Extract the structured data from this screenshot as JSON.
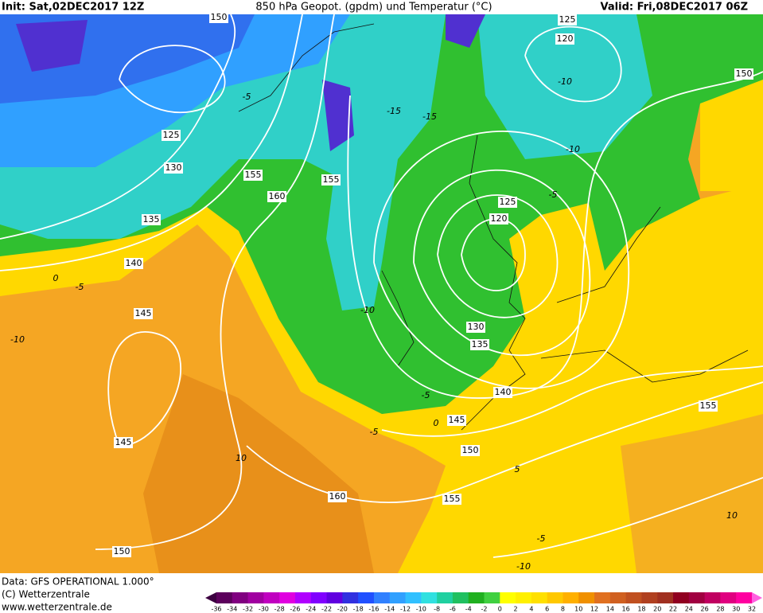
{
  "header": {
    "init": "Init: Sat,02DEC2017 12Z",
    "title": "850 hPa Geopot. (gpdm) und Temperatur (°C)",
    "valid": "Valid: Fri,08DEC2017 06Z"
  },
  "footer": {
    "data": "Data: GFS OPERATIONAL 1.000°",
    "copyright": "(C) Wetterzentrale",
    "url": "www.wetterzentrale.de"
  },
  "map": {
    "height_labels": [
      "125",
      "130",
      "135",
      "140",
      "145",
      "145",
      "150",
      "155",
      "160",
      "155",
      "160",
      "125",
      "120",
      "130",
      "135",
      "140",
      "145",
      "150",
      "155",
      "155",
      "150",
      "125",
      "120",
      "150"
    ],
    "temperature_labels": [
      "-5",
      "-15",
      "-15",
      "-10",
      "-10",
      "-5",
      "0",
      "-5",
      "-10",
      "-10",
      "-5",
      "-5",
      "0",
      "5",
      "10",
      "10",
      "-5",
      "-10"
    ]
  },
  "colorbar": {
    "labels": [
      "-36",
      "-34",
      "-32",
      "-30",
      "-28",
      "-26",
      "-24",
      "-22",
      "-20",
      "-18",
      "-16",
      "-14",
      "-12",
      "-10",
      "-8",
      "-6",
      "-4",
      "-2",
      "0",
      "2",
      "4",
      "6",
      "8",
      "10",
      "12",
      "14",
      "16",
      "18",
      "20",
      "22",
      "24",
      "26",
      "28",
      "30",
      "32"
    ],
    "colors": [
      "#3c0040",
      "#5c005c",
      "#800080",
      "#a000a0",
      "#c000c0",
      "#e000e0",
      "#b000ff",
      "#8000ff",
      "#6000e0",
      "#3030e0",
      "#2050ff",
      "#3080ff",
      "#30a0ff",
      "#30c0ff",
      "#30e0e0",
      "#20d0a0",
      "#20c060",
      "#20b020",
      "#40d040",
      "#ffff00",
      "#fff000",
      "#ffe000",
      "#ffc800",
      "#ffb000",
      "#f09000",
      "#e07020",
      "#d06020",
      "#c05020",
      "#b04020",
      "#a03020",
      "#900020",
      "#a00040",
      "#c00060",
      "#e00080",
      "#ff00a0",
      "#ff60e0"
    ]
  }
}
